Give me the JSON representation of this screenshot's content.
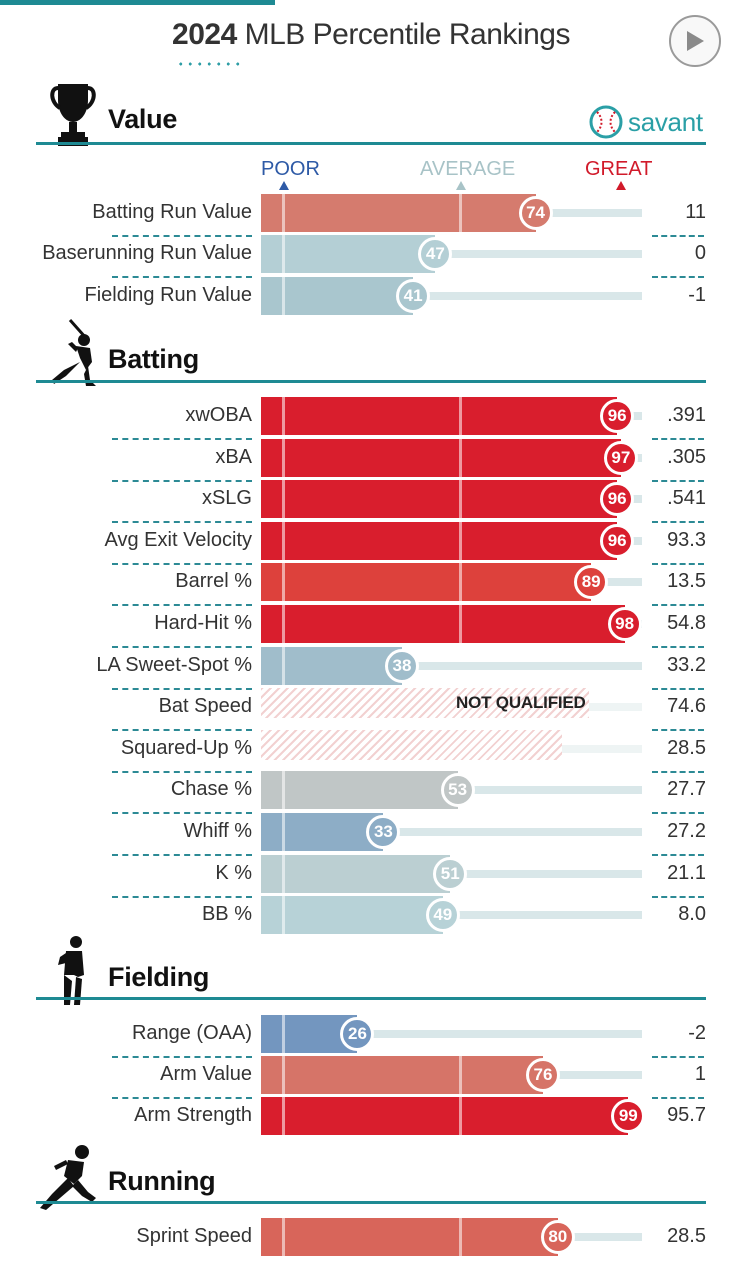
{
  "header": {
    "year": "2024",
    "title_rest": "MLB Percentile Rankings",
    "brand": "savant"
  },
  "scale": {
    "poor": "POOR",
    "average": "AVERAGE",
    "great": "GREAT"
  },
  "colors": {
    "accent": "#1e8a93",
    "poor_blue": "#2e5aa6",
    "great_red": "#d11a2a",
    "track": "#d9e7e9"
  },
  "chart_data": {
    "type": "bar",
    "title": "2024 MLB Percentile Rankings",
    "xlim": [
      0,
      100
    ],
    "scale_labels": [
      "POOR",
      "AVERAGE",
      "GREAT"
    ],
    "sections": [
      {
        "name": "Value",
        "rows": [
          {
            "label": "Batting Run Value",
            "percentile": 74,
            "value": "11"
          },
          {
            "label": "Baserunning Run Value",
            "percentile": 47,
            "value": "0"
          },
          {
            "label": "Fielding Run Value",
            "percentile": 41,
            "value": "-1"
          }
        ]
      },
      {
        "name": "Batting",
        "rows": [
          {
            "label": "xwOBA",
            "percentile": 96,
            "value": ".391"
          },
          {
            "label": "xBA",
            "percentile": 97,
            "value": ".305"
          },
          {
            "label": "xSLG",
            "percentile": 96,
            "value": ".541"
          },
          {
            "label": "Avg Exit Velocity",
            "percentile": 96,
            "value": "93.3"
          },
          {
            "label": "Barrel %",
            "percentile": 89,
            "value": "13.5"
          },
          {
            "label": "Hard-Hit %",
            "percentile": 98,
            "value": "54.8"
          },
          {
            "label": "LA Sweet-Spot %",
            "percentile": 38,
            "value": "33.2"
          },
          {
            "label": "Bat Speed",
            "percentile": null,
            "not_qualified_fill": 86,
            "value": "74.6",
            "status": "NOT QUALIFIED"
          },
          {
            "label": "Squared-Up %",
            "percentile": null,
            "not_qualified_fill": 79,
            "value": "28.5"
          },
          {
            "label": "Chase %",
            "percentile": 53,
            "value": "27.7"
          },
          {
            "label": "Whiff %",
            "percentile": 33,
            "value": "27.2"
          },
          {
            "label": "K %",
            "percentile": 51,
            "value": "21.1"
          },
          {
            "label": "BB %",
            "percentile": 49,
            "value": "8.0"
          }
        ]
      },
      {
        "name": "Fielding",
        "rows": [
          {
            "label": "Range (OAA)",
            "percentile": 26,
            "value": "-2"
          },
          {
            "label": "Arm Value",
            "percentile": 76,
            "value": "1"
          },
          {
            "label": "Arm Strength",
            "percentile": 99,
            "value": "95.7"
          }
        ]
      },
      {
        "name": "Running",
        "rows": [
          {
            "label": "Sprint Speed",
            "percentile": 80,
            "value": "28.5"
          }
        ]
      }
    ]
  }
}
